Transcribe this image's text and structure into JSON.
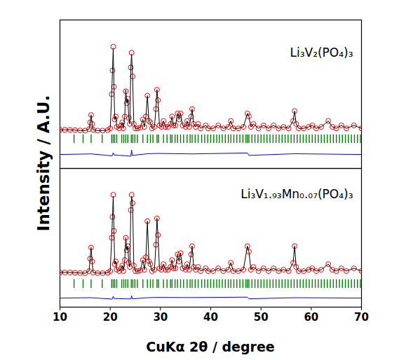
{
  "chart_data": [
    {
      "type": "scatter",
      "annotation": "Li₃V₂(PO₄)₃",
      "ylabel": "Intensity / A.U.",
      "xlim": [
        10,
        70
      ],
      "xticks": [],
      "ylim": [
        0,
        100
      ],
      "yticks": [],
      "tick_labels": false,
      "x": [
        10,
        11,
        12,
        13,
        14,
        15,
        15.8,
        16.0,
        16.2,
        16.4,
        16.6,
        17.5,
        18.5,
        19.5,
        20.0,
        20.3,
        20.45,
        20.6,
        20.75,
        20.9,
        21.1,
        21.3,
        21.8,
        22.2,
        22.4,
        22.6,
        22.9,
        23.1,
        23.3,
        23.5,
        23.7,
        23.9,
        24.1,
        24.25,
        24.45,
        24.7,
        25.0,
        25.5,
        26.0,
        26.5,
        26.8,
        27.1,
        27.4,
        27.7,
        28.0,
        28.3,
        28.8,
        29.1,
        29.3,
        29.5,
        29.8,
        30.2,
        30.6,
        31.0,
        31.5,
        32.0,
        32.3,
        32.6,
        33.0,
        33.4,
        33.7,
        34.0,
        34.4,
        35.0,
        35.3,
        35.7,
        36.1,
        36.3,
        36.6,
        37.0,
        37.5,
        38.0,
        39.0,
        39.5,
        40.5,
        41.5,
        42.5,
        43.5,
        44.0,
        44.5,
        45.5,
        46.5,
        47.3,
        47.6,
        48.0,
        48.5,
        49.5,
        50.5,
        51.5,
        52.5,
        53.5,
        54.5,
        55.5,
        56.4,
        56.7,
        57.0,
        57.5,
        58.5,
        59.5,
        60.2,
        61.0,
        62.0,
        63.4,
        64.2,
        65.0,
        66.0,
        67.0,
        68.5,
        70.0
      ],
      "series": [
        {
          "type": "scatter",
          "marker": "circle",
          "color": "#ff0000",
          "values": [
            26,
            26,
            26,
            25.8,
            25.6,
            25.5,
            26.5,
            31,
            36,
            30,
            26,
            25.5,
            25.5,
            25.8,
            27,
            50,
            66,
            82,
            55,
            33,
            35,
            28,
            27,
            29,
            31,
            27,
            35,
            52,
            44,
            47,
            34,
            30,
            68,
            78,
            62,
            30,
            27,
            27,
            27.5,
            33,
            28,
            35,
            49,
            32,
            31,
            27,
            28,
            40,
            53,
            46,
            29,
            28,
            32,
            28,
            28,
            30,
            35,
            29,
            29,
            37,
            33,
            37,
            29,
            28,
            32,
            28,
            35,
            40,
            30,
            28,
            30,
            27,
            29,
            27,
            27,
            29,
            27,
            28,
            32,
            27,
            27,
            28,
            37,
            35,
            28,
            30,
            27,
            29,
            27,
            29,
            27,
            28,
            27,
            32,
            38.7,
            30,
            27,
            27,
            28,
            29,
            27,
            28,
            32,
            28,
            27,
            29,
            27,
            29,
            27
          ]
        },
        {
          "type": "line",
          "color": "#000000",
          "values": [
            26,
            26,
            26,
            25.8,
            25.6,
            25.5,
            26.5,
            31,
            36,
            30,
            26,
            25.5,
            25.5,
            25.8,
            27,
            50,
            66,
            81,
            55,
            33,
            35,
            28,
            27,
            29,
            31,
            27,
            35,
            53,
            44,
            47,
            34,
            30,
            68,
            77,
            62,
            30,
            27,
            27,
            27.5,
            33,
            28,
            35,
            49,
            32,
            31,
            27,
            28,
            40,
            53,
            46,
            29,
            28,
            32,
            28,
            28,
            30,
            35,
            29,
            29,
            37,
            33,
            37,
            29,
            28,
            32,
            28,
            35,
            40,
            30,
            28,
            30,
            27,
            29,
            27,
            27,
            29,
            27,
            28,
            32,
            27,
            27,
            28,
            37,
            35,
            28,
            30,
            27,
            29,
            27,
            29,
            27,
            28,
            27,
            32,
            38.7,
            30,
            27,
            27,
            28,
            29,
            27,
            28,
            32,
            28,
            27,
            29,
            27,
            29,
            27
          ]
        },
        {
          "type": "scatter",
          "marker": "tick",
          "color": "#008000",
          "x": [
            12.8,
            14.6,
            16.2,
            18.4,
            20.3,
            20.6,
            20.9,
            21.3,
            22.3,
            22.7,
            23.1,
            23.5,
            24.2,
            24.5,
            24.9,
            25.4,
            26.5,
            27.4,
            28.0,
            28.5,
            29.3,
            29.6,
            30.6,
            31.3,
            32.0,
            32.3,
            32.9,
            33.4,
            34.0,
            34.6,
            35.3,
            35.9,
            36.3,
            36.9,
            37.5,
            38.2,
            38.8,
            39.4,
            40.0,
            40.6,
            41.2,
            41.7,
            42.3,
            42.9,
            43.5,
            44.0,
            44.6,
            45.2,
            45.8,
            46.4,
            47.0,
            47.3,
            47.6,
            48.2,
            48.8,
            49.4,
            50.0,
            50.6,
            51.2,
            51.8,
            52.4,
            53.0,
            53.6,
            54.2,
            54.8,
            55.4,
            56.0,
            56.6,
            57.2,
            57.8,
            58.4,
            59.0,
            59.6,
            60.2,
            60.8,
            61.4,
            62.0,
            62.6,
            63.2,
            63.8,
            64.4,
            65.0,
            65.6,
            66.2,
            66.8,
            67.4,
            68.0,
            68.6,
            69.2,
            69.8
          ],
          "values": [
            20,
            20,
            20,
            20,
            20,
            20,
            20,
            20,
            20,
            20,
            20,
            20,
            20,
            20,
            20,
            20,
            20,
            20,
            20,
            20,
            20,
            20,
            20,
            20,
            20,
            20,
            20,
            20,
            20,
            20,
            20,
            20,
            20,
            20,
            20,
            20,
            20,
            20,
            20,
            20,
            20,
            20,
            20,
            20,
            20,
            20,
            20,
            20,
            20,
            20,
            20,
            20,
            20,
            20,
            20,
            20,
            20,
            20,
            20,
            20,
            20,
            20,
            20,
            20,
            20,
            20,
            20,
            20,
            20,
            20,
            20,
            20,
            20,
            20,
            20,
            20,
            20,
            20,
            20,
            20,
            20,
            20,
            20,
            20,
            20,
            20,
            20,
            20,
            20,
            20
          ]
        },
        {
          "type": "line",
          "color": "#0000ff",
          "x": [
            10,
            16.2,
            20.4,
            20.6,
            20.8,
            23.1,
            24.1,
            24.25,
            24.4,
            27.4,
            29.3,
            36.3,
            47.3,
            47.6,
            56.7,
            70
          ],
          "values": [
            9.4,
            9.8,
            8.5,
            10.6,
            9,
            8.6,
            8.2,
            12.5,
            8.8,
            9.9,
            10.1,
            9.8,
            10.4,
            8.8,
            9.9,
            9.4
          ]
        }
      ]
    },
    {
      "type": "scatter",
      "annotation": "Li₃V₁.₉₃Mn₀.₀₇(PO₄)₃",
      "xlabel": "CuKα 2θ / degree",
      "xlim": [
        10,
        70
      ],
      "xticks": [
        10,
        20,
        30,
        40,
        50,
        60,
        70
      ],
      "ylim": [
        0,
        100
      ],
      "yticks": [],
      "tick_labels": "x",
      "x": [
        10,
        11,
        12,
        13,
        14,
        15,
        15.8,
        16.0,
        16.2,
        16.4,
        16.6,
        17.5,
        18.5,
        19.5,
        20.0,
        20.3,
        20.45,
        20.6,
        20.75,
        20.9,
        21.1,
        21.3,
        21.8,
        22.2,
        22.4,
        22.6,
        22.9,
        23.1,
        23.3,
        23.5,
        23.7,
        23.9,
        24.1,
        24.25,
        24.45,
        24.7,
        25.0,
        25.5,
        26.0,
        26.5,
        26.8,
        27.1,
        27.4,
        27.7,
        28.0,
        28.3,
        28.8,
        29.1,
        29.3,
        29.5,
        29.8,
        30.2,
        30.6,
        31.0,
        31.5,
        32.0,
        32.3,
        32.6,
        33.0,
        33.4,
        33.7,
        34.0,
        34.4,
        35.0,
        35.3,
        35.7,
        36.1,
        36.3,
        36.6,
        37.0,
        37.5,
        38.0,
        39.0,
        39.5,
        40.5,
        41.5,
        42.5,
        43.5,
        44.0,
        44.5,
        45.5,
        46.5,
        47.3,
        47.6,
        48.0,
        48.5,
        49.5,
        50.5,
        51.5,
        52.5,
        53.5,
        54.5,
        55.5,
        56.4,
        56.7,
        57.0,
        57.5,
        58.5,
        59.5,
        60.2,
        61.0,
        62.0,
        63.4,
        64.2,
        65.0,
        66.0,
        67.0,
        68.5,
        70.0
      ],
      "series": [
        {
          "type": "scatter",
          "marker": "circle",
          "color": "#ff0000",
          "values": [
            25,
            25,
            25,
            24.8,
            24.6,
            24.5,
            26,
            35,
            43,
            33,
            25,
            24.5,
            24.5,
            24.8,
            26,
            50,
            65,
            81,
            55,
            31,
            33,
            27,
            26,
            28,
            30,
            26,
            34,
            50,
            41,
            44,
            32,
            29,
            70,
            81,
            75,
            30,
            26,
            26,
            26.5,
            34,
            27,
            36,
            62,
            33,
            31,
            26,
            27,
            45,
            64,
            52,
            28,
            27,
            31,
            27,
            27,
            29,
            34,
            28,
            28,
            38,
            33,
            39,
            28,
            27,
            31,
            27,
            38,
            44,
            29,
            27,
            29,
            26,
            28,
            26,
            26,
            28,
            26,
            27,
            32,
            26,
            26,
            27,
            44,
            40,
            27,
            29,
            26,
            28,
            26,
            28,
            26,
            27,
            26,
            32,
            44,
            29,
            26,
            26,
            27,
            28,
            26,
            27,
            31,
            27,
            26,
            28,
            26,
            28,
            26
          ]
        },
        {
          "type": "line",
          "color": "#000000",
          "values": [
            25,
            25,
            25,
            24.8,
            24.6,
            24.5,
            26,
            35,
            43,
            33,
            25,
            24.5,
            24.5,
            24.8,
            26,
            50,
            65,
            80,
            55,
            31,
            33,
            27,
            26,
            28,
            30,
            26,
            34,
            50,
            41,
            44,
            32,
            29,
            70,
            80,
            75,
            30,
            26,
            26,
            26.5,
            34,
            27,
            36,
            62,
            33,
            31,
            26,
            27,
            45,
            64,
            52,
            28,
            27,
            31,
            27,
            27,
            29,
            34,
            28,
            28,
            38,
            33,
            39,
            28,
            27,
            31,
            27,
            38,
            44,
            29,
            27,
            29,
            26,
            28,
            26,
            26,
            28,
            26,
            27,
            32,
            26,
            26,
            27,
            44,
            40,
            27,
            29,
            26,
            28,
            26,
            28,
            26,
            27,
            26,
            32,
            44,
            29,
            26,
            26,
            27,
            28,
            26,
            27,
            31,
            27,
            26,
            28,
            26,
            28,
            26
          ]
        },
        {
          "type": "scatter",
          "marker": "tick",
          "color": "#008000",
          "x": [
            12.8,
            14.6,
            16.2,
            18.4,
            20.3,
            20.6,
            20.9,
            21.3,
            22.3,
            22.7,
            23.1,
            23.5,
            24.2,
            24.5,
            24.9,
            25.4,
            26.5,
            27.4,
            28.0,
            28.5,
            29.3,
            29.6,
            30.6,
            31.3,
            32.0,
            32.3,
            32.9,
            33.4,
            34.0,
            34.6,
            35.3,
            35.9,
            36.3,
            36.9,
            37.5,
            38.2,
            38.8,
            39.4,
            40.0,
            40.6,
            41.2,
            41.7,
            42.3,
            42.9,
            43.5,
            44.0,
            44.6,
            45.2,
            45.8,
            46.4,
            47.0,
            47.3,
            47.6,
            48.2,
            48.8,
            49.4,
            50.0,
            50.6,
            51.2,
            51.8,
            52.4,
            53.0,
            53.6,
            54.2,
            54.8,
            55.4,
            56.0,
            56.6,
            57.2,
            57.8,
            58.4,
            59.0,
            59.6,
            60.2,
            60.8,
            61.4,
            62.0,
            62.6,
            63.2,
            63.8,
            64.4,
            65.0,
            65.6,
            66.2,
            66.8,
            67.4,
            68.0,
            68.6,
            69.2,
            69.8
          ],
          "values": [
            17,
            17,
            17,
            17,
            17,
            17,
            17,
            17,
            17,
            17,
            17,
            17,
            17,
            17,
            17,
            17,
            17,
            17,
            17,
            17,
            17,
            17,
            17,
            17,
            17,
            17,
            17,
            17,
            17,
            17,
            17,
            17,
            17,
            17,
            17,
            17,
            17,
            17,
            17,
            17,
            17,
            17,
            17,
            17,
            17,
            17,
            17,
            17,
            17,
            17,
            17,
            17,
            17,
            17,
            17,
            17,
            17,
            17,
            17,
            17,
            17,
            17,
            17,
            17,
            17,
            17,
            17,
            17,
            17,
            17,
            17,
            17,
            17,
            17,
            17,
            17,
            17,
            17,
            17,
            17,
            17,
            17,
            17,
            17,
            17,
            17,
            17,
            17,
            17,
            17
          ]
        },
        {
          "type": "line",
          "color": "#0000ff",
          "x": [
            10,
            16.2,
            20.4,
            20.6,
            20.8,
            23.1,
            24.1,
            24.25,
            24.4,
            27.4,
            29.3,
            36.3,
            47.3,
            47.6,
            56.7,
            70
          ],
          "values": [
            6.5,
            6.8,
            5.8,
            7.8,
            6.2,
            6.0,
            5.9,
            8.2,
            6.0,
            6.8,
            7.0,
            6.9,
            7.2,
            6.0,
            6.8,
            6.5
          ]
        }
      ]
    }
  ]
}
